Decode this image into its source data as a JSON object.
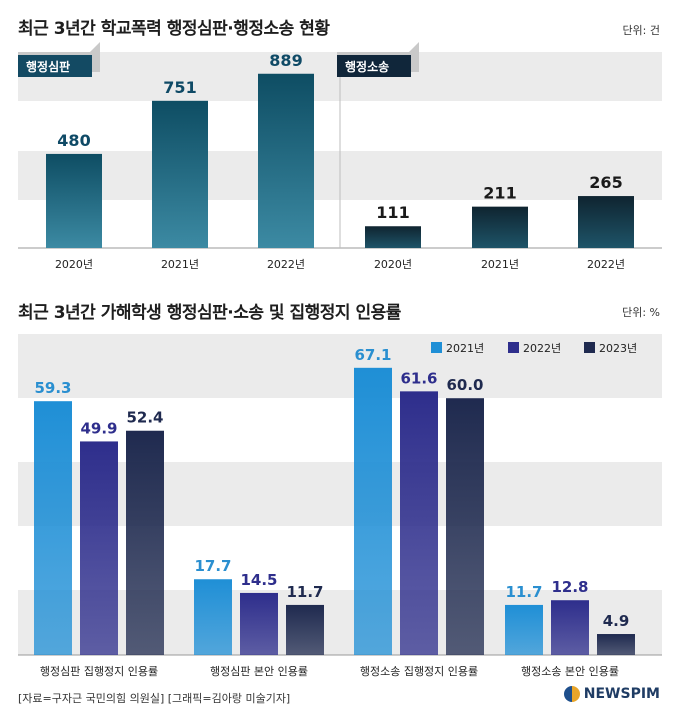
{
  "colors": {
    "band": "#ebebeb",
    "chart1_bar_top": "#0e4d63",
    "chart1_bar_bottom": "#3c8aa3",
    "chart1_bar2_top": "#0f2430",
    "chart1_bar2_bottom": "#1e5468",
    "series_2021": "#1f8fd6",
    "series_2022": "#2e2e8c",
    "series_2023": "#1f2a4f",
    "tag_bg": "#134a63",
    "tag_bg2": "#10263a",
    "value1": "#0f4a66",
    "value2": "#1a1a1a"
  },
  "chart1": {
    "title": "최근 3년간 학교폭력 행정심판·행정소송 현황",
    "unit": "단위: 건",
    "chart_data": {
      "type": "bar",
      "groups": [
        {
          "tag": "행정심판",
          "categories": [
            "2020년",
            "2021년",
            "2022년"
          ],
          "values": [
            480,
            751,
            889
          ],
          "value_labels": [
            "480",
            "751",
            "889"
          ]
        },
        {
          "tag": "행정소송",
          "categories": [
            "2020년",
            "2021년",
            "2022년"
          ],
          "values": [
            111,
            211,
            265
          ],
          "value_labels": [
            "111",
            "211",
            "265"
          ]
        }
      ],
      "ylim": [
        0,
        1000
      ],
      "grid": false
    }
  },
  "chart2": {
    "title": "최근 3년간 가해학생 행정심판·소송 및 집행정지 인용률",
    "unit": "단위: %",
    "chart_data": {
      "type": "bar",
      "categories": [
        "행정심판 집행정지 인용률",
        "행정심판 본안 인용률",
        "행정소송 집행정지 인용률",
        "행정소송 본안 인용률"
      ],
      "series": [
        {
          "name": "2021년",
          "values": [
            59.3,
            17.7,
            67.1,
            11.7
          ],
          "value_labels": [
            "59.3",
            "17.7",
            "67.1",
            "11.7"
          ]
        },
        {
          "name": "2022년",
          "values": [
            49.9,
            14.5,
            61.6,
            12.8
          ],
          "value_labels": [
            "49.9",
            "14.5",
            "61.6",
            "12.8"
          ]
        },
        {
          "name": "2023년",
          "values": [
            52.4,
            11.7,
            60.0,
            4.9
          ],
          "value_labels": [
            "52.4",
            "11.7",
            "60.0",
            "4.9"
          ]
        }
      ],
      "ylim": [
        0,
        75
      ],
      "legend": "top-right",
      "grid": false
    }
  },
  "footer": {
    "source": "[자료=구자근 국민의힘 의원실] [그래픽=김아랑 미술기자]",
    "logo": "NEWSPIM"
  }
}
